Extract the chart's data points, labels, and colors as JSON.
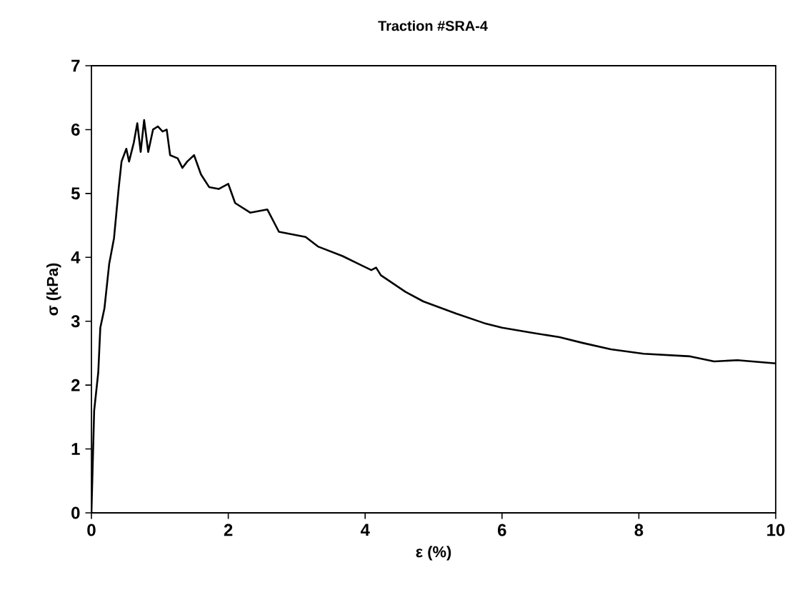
{
  "chart_data": {
    "type": "line",
    "title": "Traction #SRA-4",
    "xlabel": "ε (%)",
    "ylabel": "σ (kPa)",
    "series": [
      {
        "color": "#000000",
        "x": [
          0,
          0.04,
          0.1,
          0.13,
          0.19,
          0.26,
          0.33,
          0.4,
          0.44,
          0.51,
          0.55,
          0.62,
          0.67,
          0.72,
          0.77,
          0.83,
          0.9,
          0.97,
          1.04,
          1.1,
          1.15,
          1.26,
          1.33,
          1.4,
          1.5,
          1.6,
          1.72,
          1.86,
          2.0,
          2.1,
          2.32,
          2.57,
          2.74,
          3.13,
          3.31,
          3.67,
          4.09,
          4.16,
          4.23,
          4.59,
          4.85,
          5.33,
          5.74,
          6.0,
          6.43,
          6.84,
          7.18,
          7.59,
          8.07,
          8.75,
          9.1,
          9.44,
          10
        ],
        "values": [
          0,
          1.6,
          2.2,
          2.9,
          3.2,
          3.9,
          4.3,
          5.1,
          5.5,
          5.7,
          5.5,
          5.8,
          6.1,
          5.65,
          6.15,
          5.65,
          6.0,
          6.05,
          5.97,
          6.0,
          5.6,
          5.55,
          5.4,
          5.5,
          5.6,
          5.3,
          5.1,
          5.07,
          5.15,
          4.85,
          4.7,
          4.75,
          4.4,
          4.32,
          4.17,
          4.02,
          3.8,
          3.84,
          3.72,
          3.46,
          3.31,
          3.12,
          2.97,
          2.9,
          2.82,
          2.75,
          2.66,
          2.56,
          2.49,
          2.45,
          2.37,
          2.39,
          2.34
        ]
      }
    ],
    "xlim": [
      0,
      10
    ],
    "ylim": [
      0,
      7
    ],
    "xticks": [
      0,
      2,
      4,
      6,
      8,
      10
    ],
    "yticks": [
      0,
      1,
      2,
      3,
      4,
      5,
      6,
      7
    ],
    "grid": false
  }
}
